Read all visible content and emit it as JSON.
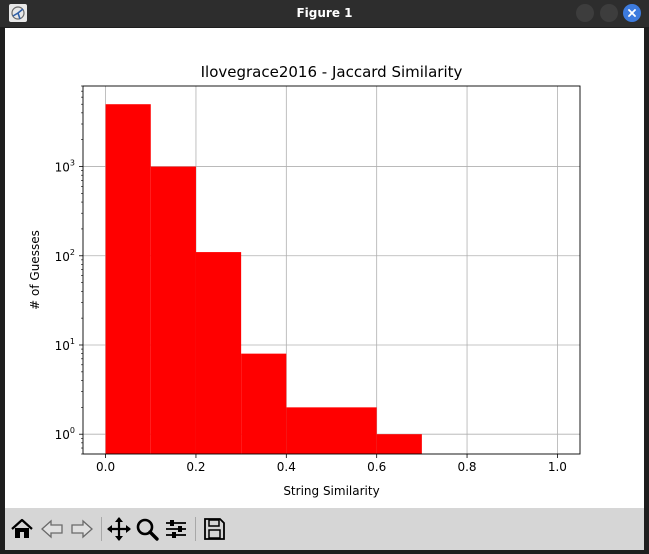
{
  "window": {
    "title": "Figure 1",
    "accent_color": "#3d7bde"
  },
  "toolbar": {
    "buttons": [
      {
        "name": "home-icon"
      },
      {
        "name": "back-arrow-icon"
      },
      {
        "name": "forward-arrow-icon"
      },
      {
        "name": "pan-icon"
      },
      {
        "name": "zoom-icon"
      },
      {
        "name": "configure-subplots-icon"
      },
      {
        "name": "save-icon"
      }
    ]
  },
  "chart_data": {
    "type": "bar",
    "title": "Ilovegrace2016 - Jaccard Similarity",
    "xlabel": "String Similarity",
    "ylabel": "# of Guesses",
    "yscale": "log",
    "xlim": [
      -0.05,
      1.05
    ],
    "ylim": [
      0.6,
      8000
    ],
    "xticks": [
      "0.0",
      "0.2",
      "0.4",
      "0.6",
      "0.8",
      "1.0"
    ],
    "yticks": [
      {
        "value": 1,
        "base": "10",
        "exp": "0"
      },
      {
        "value": 10,
        "base": "10",
        "exp": "1"
      },
      {
        "value": 100,
        "base": "10",
        "exp": "2"
      },
      {
        "value": 1000,
        "base": "10",
        "exp": "3"
      }
    ],
    "grid": true,
    "bar_color": "#ff0000",
    "bins": [
      {
        "x0": 0.0,
        "x1": 0.1,
        "value": 5000
      },
      {
        "x0": 0.1,
        "x1": 0.2,
        "value": 1000
      },
      {
        "x0": 0.2,
        "x1": 0.3,
        "value": 110
      },
      {
        "x0": 0.3,
        "x1": 0.4,
        "value": 8
      },
      {
        "x0": 0.4,
        "x1": 0.5,
        "value": 2
      },
      {
        "x0": 0.5,
        "x1": 0.6,
        "value": 2
      },
      {
        "x0": 0.6,
        "x1": 0.7,
        "value": 1
      }
    ]
  }
}
